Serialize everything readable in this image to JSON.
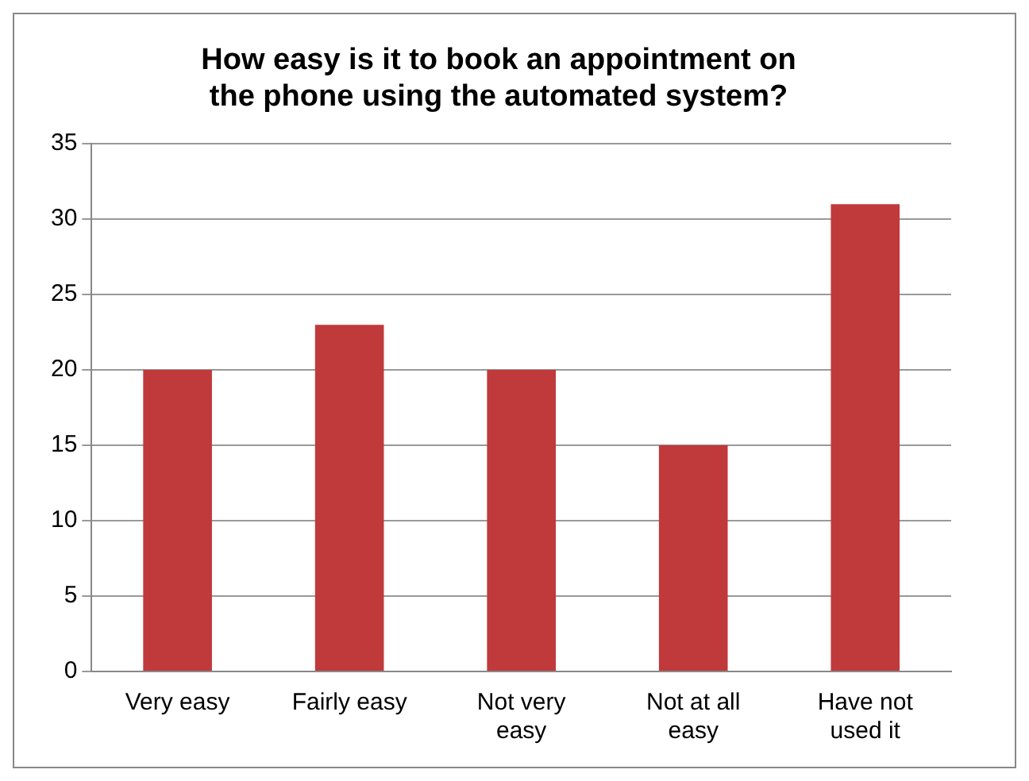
{
  "chart_data": {
    "type": "bar",
    "title": "How easy is it to book an appointment on the phone using the automated system?",
    "categories": [
      "Very easy",
      "Fairly easy",
      "Not very easy",
      "Not at all easy",
      "Have not used it"
    ],
    "values": [
      20,
      23,
      20,
      15,
      31
    ],
    "color": "#c0393b",
    "ylim": [
      0,
      35
    ],
    "yticks": [
      0,
      5,
      10,
      15,
      20,
      25,
      30,
      35
    ],
    "grid": "y",
    "legend": false
  }
}
